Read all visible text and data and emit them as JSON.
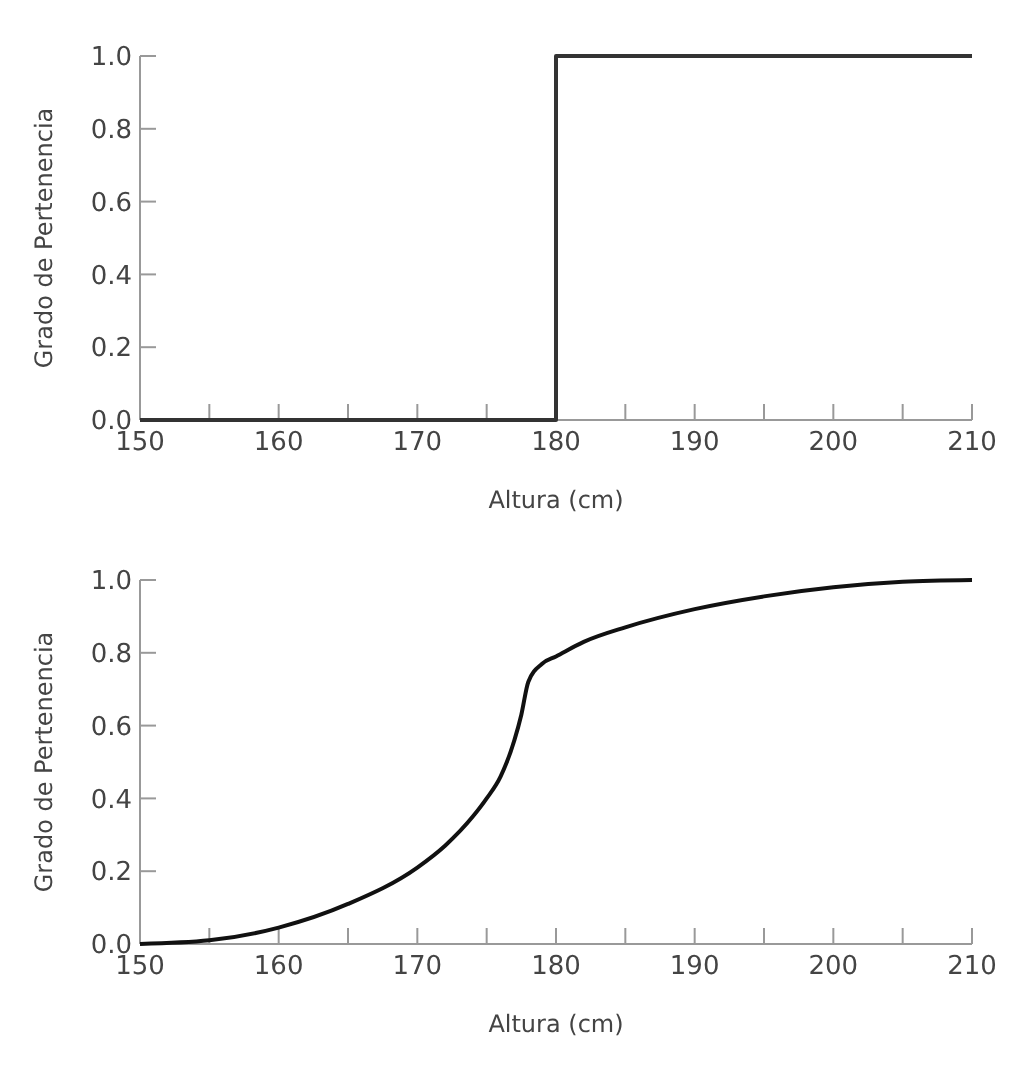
{
  "chart_data": [
    {
      "type": "line",
      "xlabel": "Altura (cm)",
      "ylabel": "Grado de Pertenencia",
      "color": "#333333",
      "x": [
        150,
        180,
        180,
        210
      ],
      "values": [
        0,
        0,
        1,
        1
      ],
      "xlim": [
        150,
        210
      ],
      "ylim": [
        0,
        1
      ],
      "xticks": [
        150,
        {
          "value": 155,
          "label": null
        },
        160,
        {
          "value": 165,
          "label": null
        },
        170,
        {
          "value": 175,
          "label": null
        },
        180,
        {
          "value": 185,
          "label": null
        },
        190,
        {
          "value": 195,
          "label": null
        },
        200,
        {
          "value": 205,
          "label": null
        },
        210
      ],
      "yticks": [
        {
          "value": 0,
          "label": "0.0"
        },
        {
          "value": 0.2,
          "label": "0.2"
        },
        {
          "value": 0.4,
          "label": "0.4"
        },
        {
          "value": 0.6,
          "label": "0.6"
        },
        {
          "value": 0.8,
          "label": "0.8"
        },
        {
          "value": 1,
          "label": "1.0"
        }
      ]
    },
    {
      "type": "line",
      "xlabel": "Altura (cm)",
      "ylabel": "Grado de Pertenencia",
      "color": "#111111",
      "x": [
        150,
        155,
        160,
        165,
        170,
        172,
        174,
        175,
        176,
        177,
        177.5,
        178,
        179,
        180,
        182,
        185,
        190,
        195,
        200,
        205,
        210
      ],
      "values": [
        0,
        0.01,
        0.045,
        0.11,
        0.21,
        0.27,
        0.35,
        0.4,
        0.46,
        0.56,
        0.63,
        0.72,
        0.77,
        0.79,
        0.83,
        0.87,
        0.92,
        0.955,
        0.98,
        0.995,
        1
      ],
      "xlim": [
        150,
        210
      ],
      "ylim": [
        0,
        1
      ],
      "xticks": [
        150,
        {
          "value": 155,
          "label": null
        },
        160,
        {
          "value": 165,
          "label": null
        },
        170,
        {
          "value": 175,
          "label": null
        },
        180,
        {
          "value": 185,
          "label": null
        },
        190,
        {
          "value": 195,
          "label": null
        },
        200,
        {
          "value": 205,
          "label": null
        },
        210
      ],
      "yticks": [
        {
          "value": 0,
          "label": "0.0"
        },
        {
          "value": 0.2,
          "label": "0.2"
        },
        {
          "value": 0.4,
          "label": "0.4"
        },
        {
          "value": 0.6,
          "label": "0.6"
        },
        {
          "value": 0.8,
          "label": "0.8"
        },
        {
          "value": 1,
          "label": "1.0"
        }
      ]
    }
  ]
}
